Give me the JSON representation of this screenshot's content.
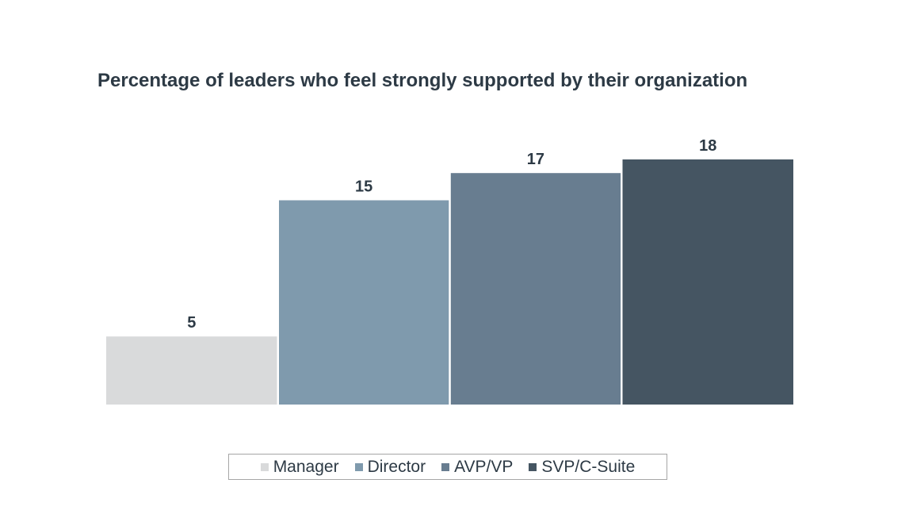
{
  "chart_data": {
    "type": "bar",
    "title": "Percentage of leaders who feel strongly supported by their organization",
    "categories": [
      "Manager",
      "Director",
      "AVP/VP",
      "SVP/C-Suite"
    ],
    "values": [
      5,
      15,
      17,
      18
    ],
    "colors": [
      "#d9dadb",
      "#7f9aad",
      "#687d90",
      "#455562"
    ],
    "ylim": [
      0,
      18
    ],
    "grid": false,
    "data_labels": true,
    "legend": {
      "position": "bottom-center",
      "entries": [
        "Manager",
        "Director",
        "AVP/VP",
        "SVP/C-Suite"
      ]
    },
    "xlabel": "",
    "ylabel": ""
  }
}
